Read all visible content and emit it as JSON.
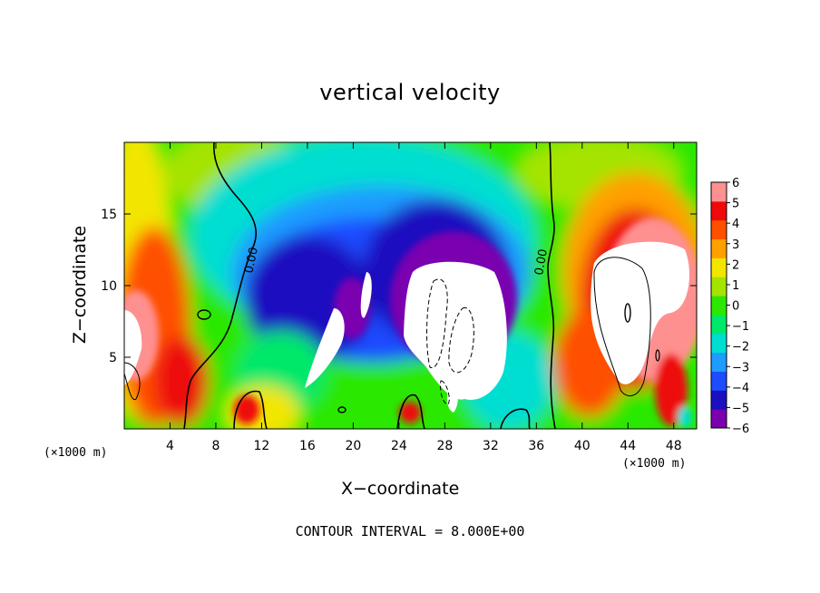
{
  "chart_data": {
    "type": "heatmap",
    "title": "vertical velocity",
    "xlabel": "X−coordinate",
    "ylabel": "Z−coordinate",
    "x_unit_label": "(×1000 m)",
    "footer": "CONTOUR INTERVAL = 8.000E+00",
    "xlim": [
      0,
      50
    ],
    "ylim": [
      0,
      20
    ],
    "xticks": [
      4,
      8,
      12,
      16,
      20,
      24,
      28,
      32,
      36,
      40,
      44,
      48
    ],
    "yticks": [
      5,
      10,
      15
    ],
    "colorbar": {
      "ticks": [
        6,
        5,
        4,
        3,
        2,
        1,
        0,
        -1,
        -2,
        -3,
        -4,
        -5,
        -6
      ],
      "labels": [
        "6",
        "5",
        "4",
        "3",
        "2",
        "1",
        "0",
        "−1",
        "−2",
        "−3",
        "−4",
        "−5",
        "−6"
      ],
      "range": [
        -6,
        6
      ],
      "saturated_color": "#ffffff"
    },
    "contour_labels": [
      "0.00",
      "0.00"
    ],
    "features": [
      {
        "kind": "updraft",
        "x": 46,
        "z": 9,
        "value": 24
      },
      {
        "kind": "updraft",
        "x": 1,
        "z": 5,
        "value": 9
      },
      {
        "kind": "updraft",
        "x": 11,
        "z": 1,
        "value": 5
      },
      {
        "kind": "updraft",
        "x": 25,
        "z": 1,
        "value": 5
      },
      {
        "kind": "downdraft",
        "x": 29,
        "z": 7,
        "value": -24
      },
      {
        "kind": "downdraft",
        "x": 19,
        "z": 8,
        "value": -12
      },
      {
        "kind": "downdraft",
        "x": 20,
        "z": 13,
        "value": -5
      }
    ]
  },
  "colors": {
    "scale": [
      "#7a00b0",
      "#1a10c0",
      "#1e4cff",
      "#1e9cff",
      "#00ded2",
      "#00e86a",
      "#2ce800",
      "#a4e400",
      "#f2e600",
      "#ffa000",
      "#ff5000",
      "#ee0a0a",
      "#ff9090"
    ]
  }
}
